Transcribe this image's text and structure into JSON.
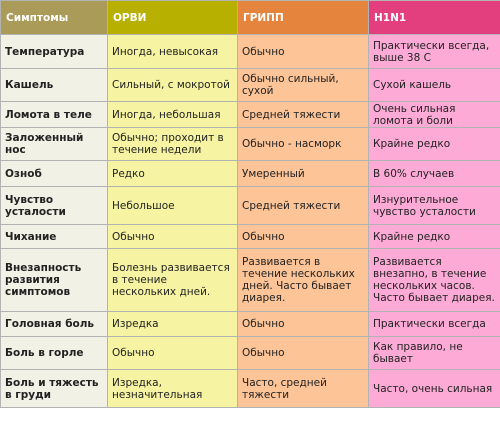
{
  "headers": [
    "Симптомы",
    "ОРВИ",
    "ГРИПП",
    "H1N1"
  ],
  "colors": {
    "col0_header": "#ab9b58",
    "col0": "#f2f1e5",
    "col1_header": "#b8b000",
    "col1": "#f6f4a2",
    "col2_header": "#e5843d",
    "col2": "#fcc497",
    "col3_header": "#e33f7e",
    "col3": "#fdaad6"
  },
  "rows": [
    {
      "symptom": "Температура",
      "orvi": "Иногда, невысокая",
      "gripp": "Обычно",
      "h1n1": "Практически всегда, выше 38 С"
    },
    {
      "symptom": "Кашель",
      "orvi": "Сильный, с мокротой",
      "gripp": "Обычно сильный, сухой",
      "h1n1": "Сухой кашель"
    },
    {
      "symptom": "Ломота в теле",
      "orvi": "Иногда, небольшая",
      "gripp": "Средней тяжести",
      "h1n1": "Очень сильная ломота и боли"
    },
    {
      "symptom": "Заложенный нос",
      "orvi": "Обычно; проходит в течение недели",
      "gripp": "Обычно - насморк",
      "h1n1": "Крайне редко"
    },
    {
      "symptom": "Озноб",
      "orvi": "Редко",
      "gripp": "Умеренный",
      "h1n1": "В 60% случаев"
    },
    {
      "symptom": "Чувство усталости",
      "orvi": "Небольшое",
      "gripp": "Средней тяжести",
      "h1n1": "Изнурительное чувство усталости"
    },
    {
      "symptom": "Чихание",
      "orvi": "Обычно",
      "gripp": "Обычно",
      "h1n1": "Крайне редко"
    },
    {
      "symptom": "Внезапность развития симптомов",
      "orvi": "Болезнь развивается в течение нескольких дней.",
      "gripp": "Развивается в течение нескольких дней. Часто бывает диарея.",
      "h1n1": "Развивается внезапно, в течение нескольких часов. Часто бывает диарея."
    },
    {
      "symptom": "Головная боль",
      "orvi": "Изредка",
      "gripp": "Обычно",
      "h1n1": "Практически всегда"
    },
    {
      "symptom": "Боль в горле",
      "orvi": "Обычно",
      "gripp": "Обычно",
      "h1n1": "Как правило, не бывает"
    },
    {
      "symptom": "Боль и тяжесть в груди",
      "orvi": "Изредка, незначительная",
      "gripp": "Часто, средней тяжести",
      "h1n1": "Часто, очень сильная"
    }
  ]
}
